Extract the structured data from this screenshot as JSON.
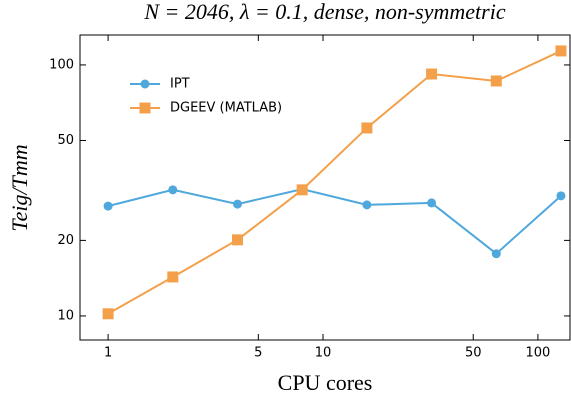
{
  "chart_data": {
    "type": "line",
    "title": "N = 2046, λ = 0.1, dense, non-symmetric",
    "x_label": "CPU cores",
    "y_label": "Teig/Tmm",
    "x": [
      1,
      2,
      4,
      8,
      16,
      32,
      64,
      128
    ],
    "series": [
      {
        "name": "IPT",
        "color": "#4fa8dc",
        "marker": "circle",
        "values": [
          27.4,
          31.8,
          27.9,
          32.0,
          27.7,
          28.2,
          17.7,
          30.1
        ]
      },
      {
        "name": "DGEEV (MATLAB)",
        "color": "#f4a04a",
        "marker": "square",
        "values": [
          10.2,
          14.3,
          20.1,
          31.8,
          56.1,
          92.0,
          86.3,
          113.7
        ]
      }
    ],
    "xlim": [
      0.74,
      141
    ],
    "ylim": [
      8.02,
      131.6
    ],
    "xticks": [
      1,
      5,
      10,
      50,
      100
    ],
    "yticks": [
      10,
      20,
      50,
      100
    ],
    "xscale": "log",
    "yscale": "log",
    "grid": false,
    "legend": "upper left"
  }
}
